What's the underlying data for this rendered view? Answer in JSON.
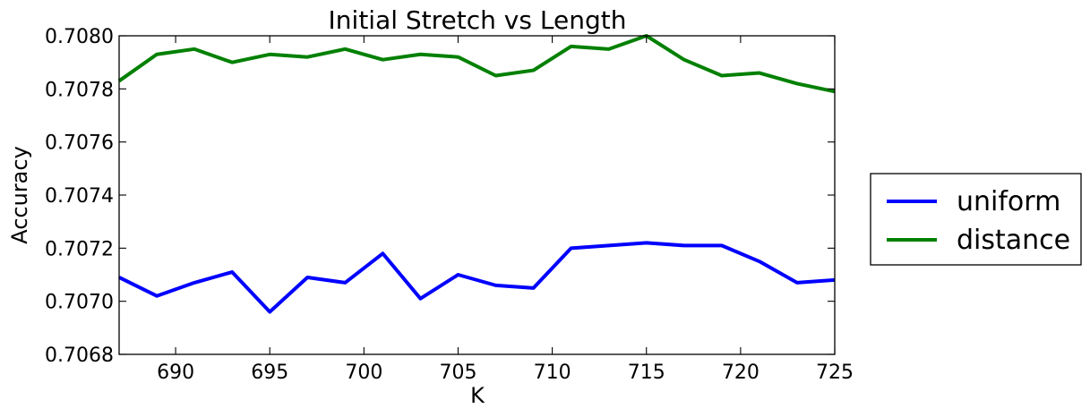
{
  "chart_data": {
    "type": "line",
    "title": "Initial Stretch vs Length",
    "xlabel": "K",
    "ylabel": "Accuracy",
    "xlim": [
      687,
      725
    ],
    "ylim": [
      0.7068,
      0.708
    ],
    "xticks": [
      690,
      695,
      700,
      705,
      710,
      715,
      720,
      725
    ],
    "yticks": [
      0.7068,
      0.707,
      0.7072,
      0.7074,
      0.7076,
      0.7078,
      0.708
    ],
    "xtick_labels": [
      "690",
      "695",
      "700",
      "705",
      "710",
      "715",
      "720",
      "725"
    ],
    "ytick_labels": [
      "0.7068",
      "0.7070",
      "0.7072",
      "0.7074",
      "0.7076",
      "0.7078",
      "0.7080"
    ],
    "grid": false,
    "legend_position": "outside-right",
    "x": [
      687,
      689,
      691,
      693,
      695,
      697,
      699,
      701,
      703,
      705,
      707,
      709,
      711,
      713,
      715,
      717,
      719,
      721,
      723,
      725
    ],
    "series": [
      {
        "name": "uniform",
        "color": "#0000ff",
        "values": [
          0.70709,
          0.70702,
          0.70707,
          0.70711,
          0.70696,
          0.70709,
          0.70707,
          0.70718,
          0.70701,
          0.7071,
          0.70706,
          0.70705,
          0.7072,
          0.70721,
          0.70722,
          0.70721,
          0.70721,
          0.70715,
          0.70707,
          0.70708
        ]
      },
      {
        "name": "distance",
        "color": "#008000",
        "values": [
          0.70783,
          0.70793,
          0.70795,
          0.7079,
          0.70793,
          0.70792,
          0.70795,
          0.70791,
          0.70793,
          0.70792,
          0.70785,
          0.70787,
          0.70796,
          0.70795,
          0.708,
          0.70791,
          0.70785,
          0.70786,
          0.70782,
          0.70779
        ]
      }
    ]
  }
}
